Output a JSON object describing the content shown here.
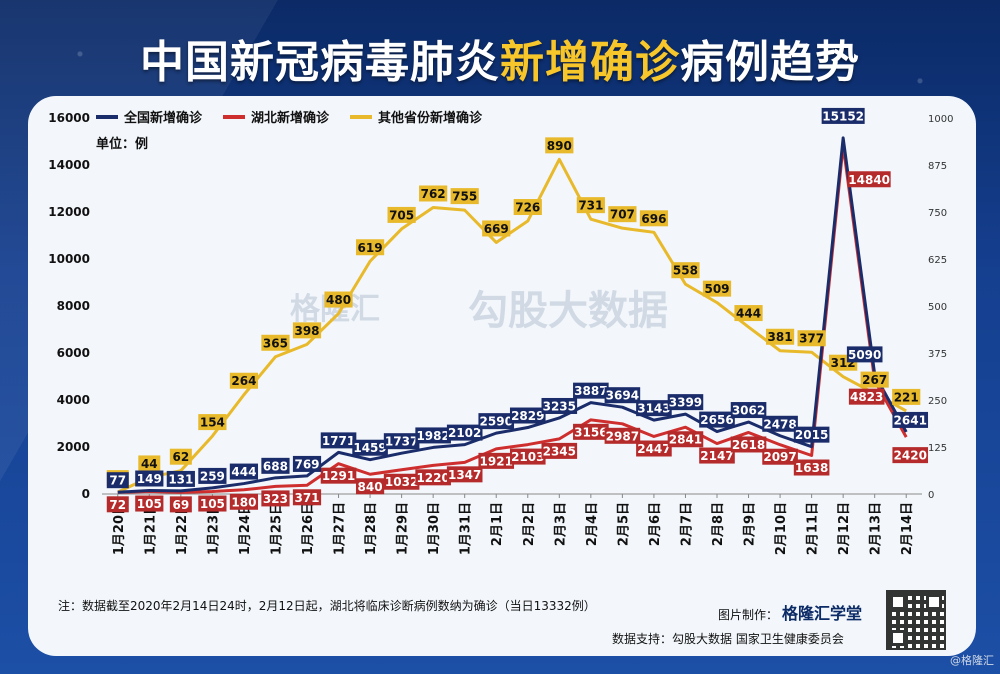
{
  "title": {
    "part1": "中国新冠病毒肺炎",
    "part2": "新增确诊",
    "part3": "病例趋势"
  },
  "unit_label": "单位：例",
  "note": "注：数据截至2020年2月14日24时，2月12日起，湖北将临床诊断病例数纳为确诊（当日13332例）",
  "credit_label": "图片制作：",
  "credit_brand": "格隆汇学堂",
  "source": "数据支持：勾股大数据 国家卫生健康委员会",
  "corner_watermark": "@格隆汇",
  "watermark_a": "格隆汇",
  "watermark_b": "勾股大数据",
  "colors": {
    "national": "#1b2c6b",
    "hubei": "#cf2e2e",
    "other": "#e8b92a"
  },
  "chart_data": {
    "type": "line",
    "categories": [
      "1月20日",
      "1月21日",
      "1月22日",
      "1月23日",
      "1月24日",
      "1月25日",
      "1月26日",
      "1月27日",
      "1月28日",
      "1月29日",
      "1月30日",
      "1月31日",
      "2月1日",
      "2月2日",
      "2月3日",
      "2月4日",
      "2月5日",
      "2月6日",
      "2月7日",
      "2月8日",
      "2月9日",
      "2月10日",
      "2月11日",
      "2月12日",
      "2月13日",
      "2月14日"
    ],
    "y_left": {
      "ticks": [
        0,
        2000,
        4000,
        6000,
        8000,
        10000,
        12000,
        14000,
        16000
      ],
      "range": [
        0,
        16000
      ]
    },
    "y_right": {
      "ticks": [
        0,
        125,
        250,
        375,
        500,
        625,
        750,
        875,
        1000
      ],
      "range": [
        0,
        1000
      ]
    },
    "series": [
      {
        "name": "全国新增确诊",
        "axis": "left",
        "color": "#1b2c6b",
        "values": [
          77,
          149,
          131,
          259,
          444,
          688,
          769,
          1771,
          1459,
          1737,
          1982,
          2102,
          2590,
          2829,
          3235,
          3887,
          3694,
          3143,
          3399,
          2656,
          3062,
          2478,
          2015,
          15152,
          5090,
          2641
        ]
      },
      {
        "name": "湖北新增确诊",
        "axis": "left",
        "color": "#cf2e2e",
        "values": [
          72,
          105,
          69,
          105,
          180,
          323,
          371,
          1291,
          840,
          1032,
          1220,
          1347,
          1921,
          2103,
          2345,
          3156,
          2987,
          2447,
          2841,
          2147,
          2618,
          2097,
          1638,
          14840,
          4823,
          2420
        ]
      },
      {
        "name": "其他省份新增确诊",
        "axis": "right",
        "color": "#e8b92a",
        "values": [
          5,
          44,
          62,
          154,
          264,
          365,
          398,
          480,
          619,
          705,
          762,
          755,
          669,
          726,
          890,
          731,
          707,
          696,
          558,
          509,
          444,
          381,
          377,
          312,
          267,
          221
        ]
      }
    ],
    "legend_position": "top-left",
    "grid": false
  }
}
